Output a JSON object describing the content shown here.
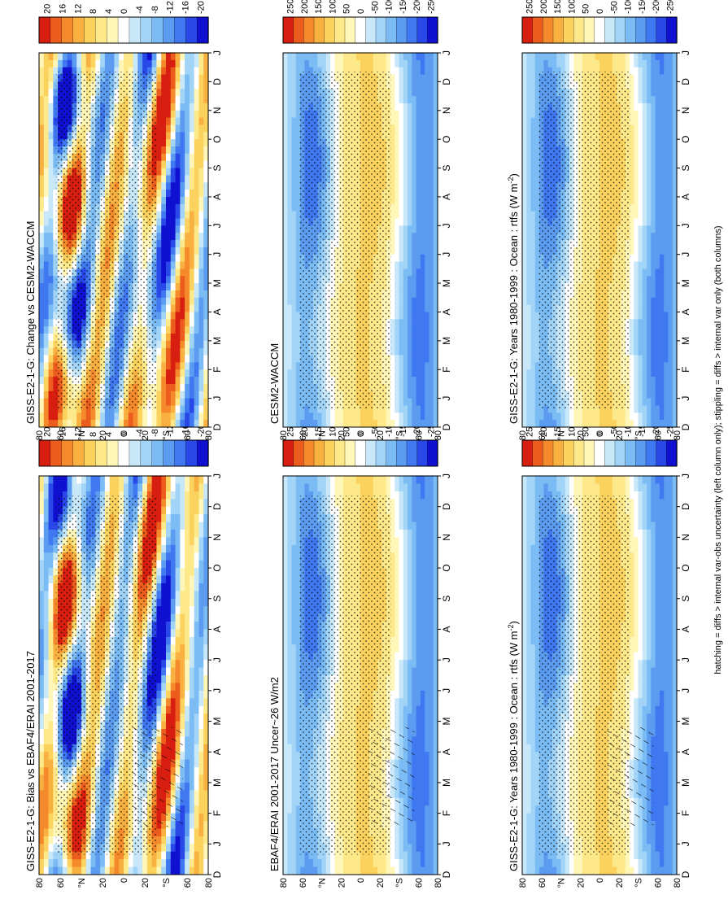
{
  "figure": {
    "footnote": "hatching = diffs > internal var-obs uncertainty (left column only); stippling = diffs > internal var only (both columns)"
  },
  "colors": {
    "abs_scale": [
      "#1010d0",
      "#2848e8",
      "#3f78f0",
      "#5c9cf0",
      "#7cbcf4",
      "#a2d4f8",
      "#c8e8fa",
      "#ffffff",
      "#fff6b8",
      "#fde98a",
      "#fbd25e",
      "#f8b040",
      "#f48a2c",
      "#ec5c1c",
      "#d81e10"
    ],
    "frame": "#000000"
  },
  "chart_data": [
    {
      "id": "bias",
      "type": "heatmap",
      "title": "GISS-E2-1-G: Bias vs EBAF4/ERAI 2001-2017",
      "months": [
        "D",
        "J",
        "F",
        "M",
        "A",
        "M",
        "J",
        "J",
        "A",
        "S",
        "O",
        "N",
        "D",
        "J"
      ],
      "lat_ticks": [
        "80",
        "60",
        "°N",
        "20",
        "0",
        "20",
        "°S",
        "60",
        "80"
      ],
      "colorbar": [
        "20",
        "16",
        "12",
        "8",
        "4",
        "0",
        "-4",
        "-8",
        "-12",
        "-16",
        "-20"
      ],
      "range": [
        -20,
        20
      ]
    },
    {
      "id": "change",
      "type": "heatmap",
      "title": "GISS-E2-1-G: Change vs CESM2-WACCM",
      "months": [
        "D",
        "J",
        "F",
        "M",
        "A",
        "M",
        "J",
        "J",
        "A",
        "S",
        "O",
        "N",
        "D",
        "J"
      ],
      "lat_ticks": [
        "80",
        "60",
        "°N",
        "20",
        "0",
        "20",
        "°S",
        "60",
        "80"
      ],
      "colorbar": [
        "20",
        "16",
        "12",
        "8",
        "4",
        "0",
        "-4",
        "-8",
        "-12",
        "-16",
        "-20"
      ],
      "range": [
        -20,
        20
      ]
    },
    {
      "id": "obs",
      "type": "heatmap",
      "title": "EBAF4/ERAI 2001-2017 Uncer~26 W/m2",
      "months": [
        "D",
        "J",
        "F",
        "M",
        "A",
        "M",
        "J",
        "J",
        "A",
        "S",
        "O",
        "N",
        "D",
        "J"
      ],
      "lat_ticks": [
        "80",
        "60",
        "°N",
        "20",
        "0",
        "20",
        "°S",
        "60",
        "80"
      ],
      "colorbar": [
        "250",
        "200",
        "150",
        "100",
        "50",
        "0",
        "-50",
        "-100",
        "-150",
        "-200",
        "-250"
      ],
      "range": [
        -250,
        250
      ]
    },
    {
      "id": "cesm",
      "type": "heatmap",
      "title": "CESM2-WACCM",
      "months": [
        "D",
        "J",
        "F",
        "M",
        "A",
        "M",
        "J",
        "J",
        "A",
        "S",
        "O",
        "N",
        "D",
        "J"
      ],
      "lat_ticks": [
        "80",
        "60",
        "°N",
        "20",
        "0",
        "20",
        "°S",
        "60",
        "80"
      ],
      "colorbar": [
        "250",
        "200",
        "150",
        "100",
        "50",
        "0",
        "-50",
        "-100",
        "-150",
        "-200",
        "-250"
      ],
      "range": [
        -250,
        250
      ]
    },
    {
      "id": "giss_left",
      "type": "heatmap",
      "title": "GISS-E2-1-G: Years 1980-1999 : Ocean : rtfs (W m",
      "title_sup": "-2",
      "title_end": ")",
      "months": [
        "D",
        "J",
        "F",
        "M",
        "A",
        "M",
        "J",
        "J",
        "A",
        "S",
        "O",
        "N",
        "D",
        "J"
      ],
      "lat_ticks": [
        "80",
        "60",
        "°N",
        "20",
        "0",
        "20",
        "°S",
        "60",
        "80"
      ],
      "colorbar": [
        "250",
        "200",
        "150",
        "100",
        "50",
        "0",
        "-50",
        "-100",
        "-150",
        "-200",
        "-250"
      ],
      "range": [
        -250,
        250
      ]
    },
    {
      "id": "giss_right",
      "type": "heatmap",
      "title": "GISS-E2-1-G: Years 1980-1999 : Ocean : rtfs (W m",
      "title_sup": "-2",
      "title_end": ")",
      "months": [
        "D",
        "J",
        "F",
        "M",
        "A",
        "M",
        "J",
        "J",
        "A",
        "S",
        "O",
        "N",
        "D",
        "J"
      ],
      "lat_ticks": [
        "80",
        "60",
        "°N",
        "20",
        "0",
        "20",
        "°S",
        "60",
        "80"
      ],
      "colorbar": [
        "250",
        "200",
        "150",
        "100",
        "50",
        "0",
        "-50",
        "-100",
        "-150",
        "-200",
        "-250"
      ],
      "range": [
        -250,
        250
      ]
    }
  ]
}
